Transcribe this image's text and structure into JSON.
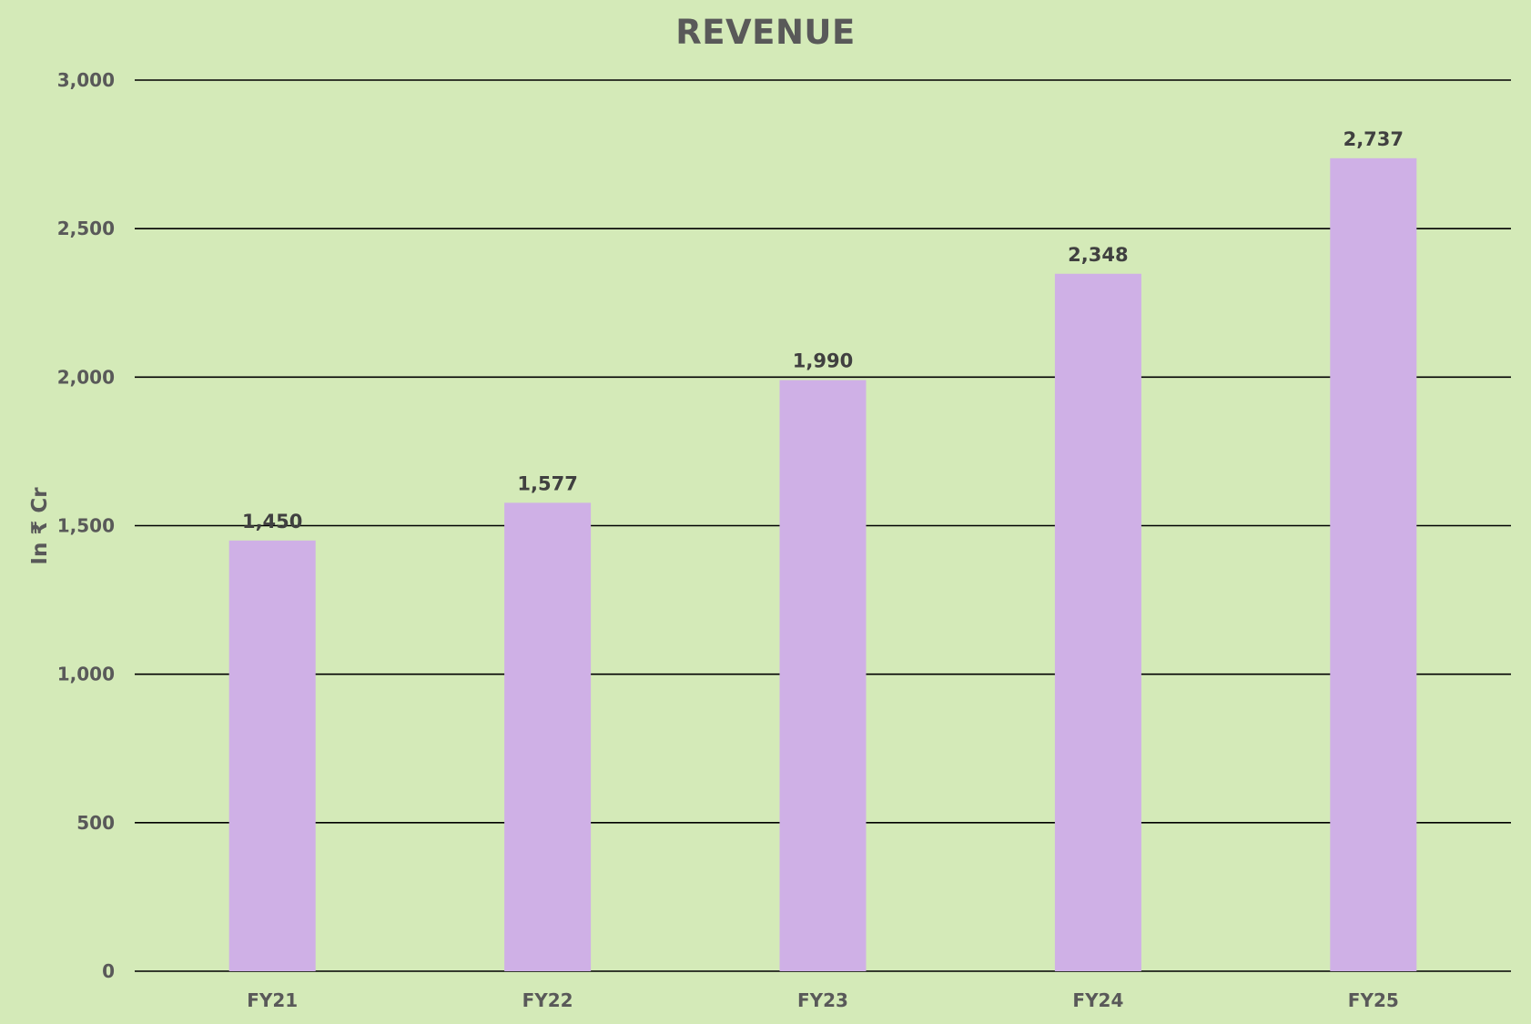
{
  "colors": {
    "background": "#d4eab8",
    "bar": "#cfb0e6",
    "gridline": "#000000",
    "text": "#595959",
    "data_label": "#404040"
  },
  "chart_data": {
    "type": "bar",
    "title": "REVENUE",
    "xlabel": "",
    "ylabel": "In ₹ Cr",
    "categories": [
      "FY21",
      "FY22",
      "FY23",
      "FY24",
      "FY25"
    ],
    "values": [
      1450,
      1577,
      1990,
      2348,
      2737
    ],
    "data_labels": [
      "1,450",
      "1,577",
      "1,990",
      "2,348",
      "2,737"
    ],
    "ylim": [
      0,
      3000
    ],
    "yticks": [
      0,
      500,
      1000,
      1500,
      2000,
      2500,
      3000
    ],
    "ytick_labels": [
      "0",
      "500",
      "1,000",
      "1,500",
      "2,000",
      "2,500",
      "3,000"
    ],
    "grid": true,
    "legend": "none"
  }
}
